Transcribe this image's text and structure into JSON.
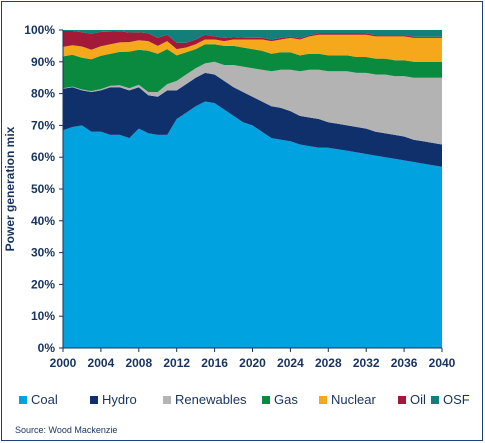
{
  "chart_data": {
    "type": "area",
    "stacked": true,
    "xlabel": "",
    "ylabel": "Power generation mix",
    "xlim": [
      2000,
      2040
    ],
    "ylim": [
      0,
      100
    ],
    "y_tick_labels": [
      "0%",
      "10%",
      "20%",
      "30%",
      "40%",
      "50%",
      "60%",
      "70%",
      "80%",
      "90%",
      "100%"
    ],
    "x_tick_labels": [
      "2000",
      "2004",
      "2008",
      "2012",
      "2016",
      "2020",
      "2024",
      "2028",
      "2032",
      "2036",
      "2040"
    ],
    "x": [
      2000,
      2001,
      2002,
      2003,
      2004,
      2005,
      2006,
      2007,
      2008,
      2009,
      2010,
      2011,
      2012,
      2013,
      2014,
      2015,
      2016,
      2017,
      2018,
      2019,
      2020,
      2021,
      2022,
      2023,
      2024,
      2025,
      2026,
      2027,
      2028,
      2029,
      2030,
      2031,
      2032,
      2033,
      2034,
      2035,
      2036,
      2037,
      2038,
      2039,
      2040
    ],
    "series": [
      {
        "name": "Coal",
        "color": "#00a3df",
        "values": [
          68.5,
          69.5,
          70,
          68,
          68,
          67,
          67,
          66,
          69,
          67.5,
          67,
          67,
          72,
          74,
          76,
          77.5,
          77,
          75,
          73,
          71,
          70,
          68,
          66,
          65.5,
          65,
          64,
          63.5,
          63,
          63,
          62.5,
          62,
          61.5,
          61,
          60.5,
          60,
          59.5,
          59,
          58.5,
          58,
          57.5,
          57
        ]
      },
      {
        "name": "Hydro",
        "color": "#10306b",
        "values": [
          13,
          12.5,
          11,
          12.5,
          13,
          15,
          15,
          15,
          13,
          12,
          12,
          14,
          9,
          9,
          9,
          9,
          9,
          9,
          9,
          9.5,
          9,
          9.5,
          10,
          10,
          9.5,
          9,
          9,
          9,
          8,
          8,
          8,
          8,
          8,
          7.5,
          7.5,
          7.5,
          7.5,
          7,
          7,
          7,
          7
        ]
      },
      {
        "name": "Renewables",
        "color": "#b3b3b3",
        "values": [
          0.2,
          0.2,
          0.3,
          0.3,
          0.4,
          0.5,
          0.6,
          0.7,
          0.8,
          1,
          1.5,
          2,
          3,
          3,
          3,
          3,
          4,
          5,
          7,
          8,
          9,
          10,
          11,
          12,
          13,
          14,
          15,
          15.5,
          16,
          16.5,
          17,
          17,
          17.5,
          18,
          18.5,
          18.5,
          19,
          19.5,
          20,
          20.5,
          21
        ]
      },
      {
        "name": "Gas",
        "color": "#0a8a3f",
        "values": [
          10,
          10,
          10,
          10,
          10.5,
          10,
          10.5,
          11.5,
          11,
          13,
          12,
          11,
          8,
          7,
          6,
          6,
          5.5,
          6,
          6,
          6,
          6,
          6,
          5.5,
          5.5,
          5.5,
          5,
          5,
          5,
          5,
          5,
          5,
          5,
          5,
          5,
          5,
          5,
          5,
          5,
          5,
          5,
          5
        ]
      },
      {
        "name": "Nuclear",
        "color": "#f5a81c",
        "values": [
          3,
          3,
          3.5,
          3,
          3,
          3,
          3,
          3,
          3,
          3,
          2.5,
          2.5,
          2,
          1.5,
          1.5,
          1.5,
          1.5,
          1.5,
          2,
          2.5,
          3,
          3.5,
          4,
          4,
          4.5,
          5,
          5.5,
          6,
          6.5,
          6.5,
          6.5,
          7,
          7,
          7,
          7,
          7.5,
          7.5,
          7.5,
          7.5,
          7.5,
          7.5
        ]
      },
      {
        "name": "Oil",
        "color": "#a31938",
        "values": [
          5,
          4.5,
          4.5,
          5,
          4.5,
          4,
          3.5,
          3,
          2.5,
          2.5,
          2.5,
          2,
          2,
          1.5,
          1.5,
          1.5,
          1,
          1,
          0.8,
          0.6,
          0.5,
          0.5,
          0.5,
          0.5,
          0.4,
          0.4,
          0.4,
          0.4,
          0.4,
          0.4,
          0.4,
          0.4,
          0.4,
          0.4,
          0.4,
          0.4,
          0.4,
          0.4,
          0.4,
          0.4,
          0.4
        ]
      },
      {
        "name": "OSF",
        "color": "#137f7a",
        "values": [
          0.3,
          0.3,
          0.7,
          1.2,
          0.6,
          0.5,
          0.4,
          0.8,
          0.7,
          1,
          2.5,
          1.5,
          4,
          4,
          3,
          1.5,
          2,
          2.5,
          2.2,
          2.4,
          2.5,
          2.5,
          3,
          2.5,
          2.1,
          2.6,
          1.6,
          1.1,
          1.1,
          1.1,
          1.1,
          1.1,
          1.1,
          1.6,
          1.6,
          1.6,
          1.6,
          2.1,
          2.1,
          2.1,
          2.5
        ]
      }
    ],
    "grid": false,
    "legend_position": "bottom"
  },
  "source_text": "Source: Wood Mackenzie"
}
